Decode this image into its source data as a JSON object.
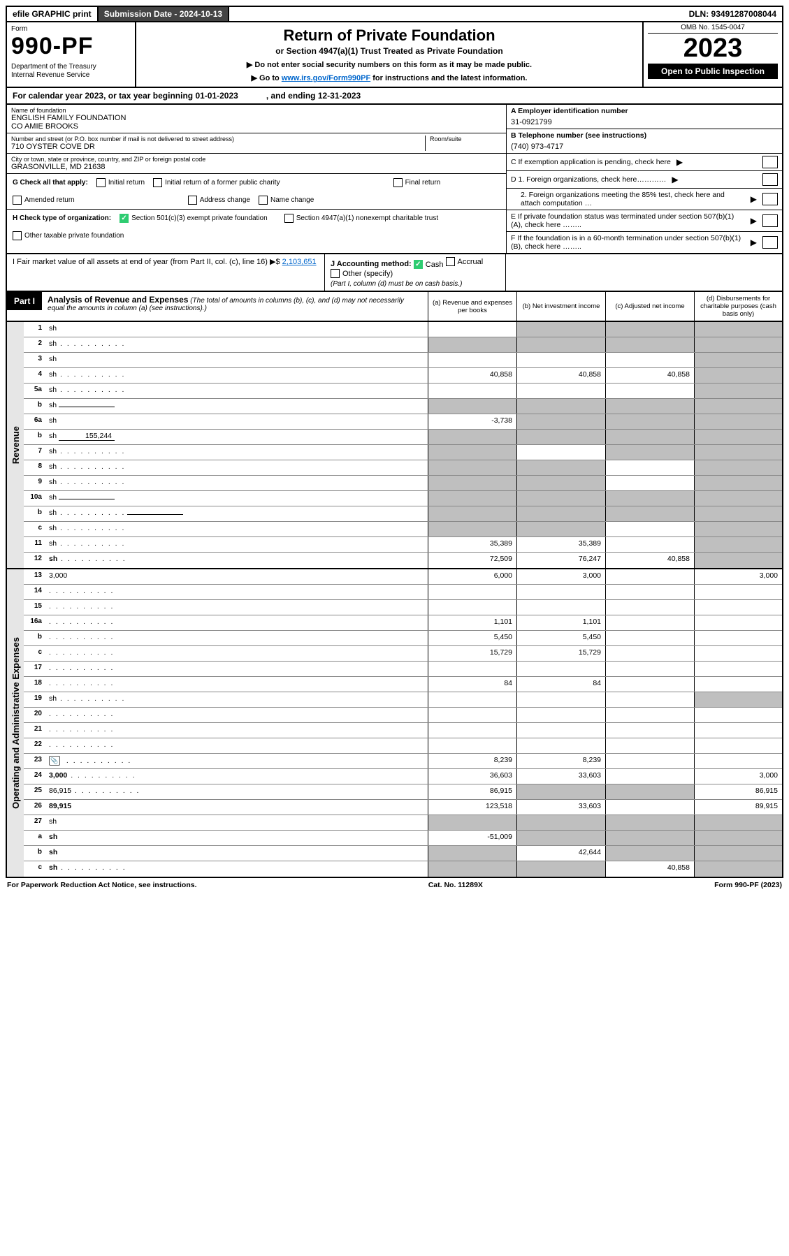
{
  "topbar": {
    "efile": "efile GRAPHIC print",
    "subdate_label": "Submission Date - 2024-10-13",
    "dln": "DLN: 93491287008044"
  },
  "header": {
    "form_label": "Form",
    "form_no": "990-PF",
    "dept": "Department of the Treasury\nInternal Revenue Service",
    "title": "Return of Private Foundation",
    "subtitle": "or Section 4947(a)(1) Trust Treated as Private Foundation",
    "note1": "▶ Do not enter social security numbers on this form as it may be made public.",
    "note2_pre": "▶ Go to ",
    "note2_link": "www.irs.gov/Form990PF",
    "note2_post": " for instructions and the latest information.",
    "omb": "OMB No. 1545-0047",
    "year": "2023",
    "open": "Open to Public Inspection"
  },
  "calrow": {
    "begin_label": "For calendar year 2023, or tax year beginning 01-01-2023",
    "end_label": ", and ending 12-31-2023"
  },
  "entity": {
    "name_label": "Name of foundation",
    "name": "ENGLISH FAMILY FOUNDATION\nCO AMIE BROOKS",
    "addr_label": "Number and street (or P.O. box number if mail is not delivered to street address)",
    "addr": "710 OYSTER COVE DR",
    "room_label": "Room/suite",
    "city_label": "City or town, state or province, country, and ZIP or foreign postal code",
    "city": "GRASONVILLE, MD  21638",
    "a_label": "A Employer identification number",
    "a_val": "31-0921799",
    "b_label": "B Telephone number (see instructions)",
    "b_val": "(740) 973-4717",
    "c_label": "C If exemption application is pending, check here",
    "d1_label": "D 1. Foreign organizations, check here…………",
    "d2_label": "2. Foreign organizations meeting the 85% test, check here and attach computation …",
    "e_label": "E  If private foundation status was terminated under section 507(b)(1)(A), check here ……..",
    "f_label": "F  If the foundation is in a 60-month termination under section 507(b)(1)(B), check here …….."
  },
  "g": {
    "label": "G Check all that apply:",
    "options": [
      "Initial return",
      "Initial return of a former public charity",
      "Final return",
      "Amended return",
      "Address change",
      "Name change"
    ]
  },
  "h": {
    "label": "H Check type of organization:",
    "opt1": "Section 501(c)(3) exempt private foundation",
    "opt2": "Section 4947(a)(1) nonexempt charitable trust",
    "opt3": "Other taxable private foundation"
  },
  "i": {
    "label": "I Fair market value of all assets at end of year (from Part II, col. (c), line 16) ▶$",
    "val": "2,103,651"
  },
  "j": {
    "label": "J Accounting method:",
    "cash": "Cash",
    "accrual": "Accrual",
    "other": "Other (specify)",
    "note": "(Part I, column (d) must be on cash basis.)"
  },
  "part1": {
    "tag": "Part I",
    "title": "Analysis of Revenue and Expenses",
    "title_note": " (The total of amounts in columns (b), (c), and (d) may not necessarily equal the amounts in column (a) (see instructions).)",
    "cols": {
      "a": "(a)   Revenue and expenses per books",
      "b": "(b)   Net investment income",
      "c": "(c)   Adjusted net income",
      "d": "(d)   Disbursements for charitable purposes (cash basis only)"
    }
  },
  "sections": {
    "revenue": "Revenue",
    "expenses": "Operating and Administrative Expenses"
  },
  "rows": [
    {
      "n": "1",
      "d": "sh",
      "a": "",
      "b": "sh",
      "c": "sh"
    },
    {
      "n": "2",
      "d": "sh",
      "dots": true,
      "a": "sh",
      "b": "sh",
      "c": "sh"
    },
    {
      "n": "3",
      "d": "sh",
      "a": "",
      "b": "",
      "c": ""
    },
    {
      "n": "4",
      "d": "sh",
      "dots": true,
      "a": "40,858",
      "b": "40,858",
      "c": "40,858"
    },
    {
      "n": "5a",
      "d": "sh",
      "dots": true,
      "a": "",
      "b": "",
      "c": ""
    },
    {
      "n": "b",
      "d": "sh",
      "inline": "",
      "a": "sh",
      "b": "sh",
      "c": "sh"
    },
    {
      "n": "6a",
      "d": "sh",
      "a": "-3,738",
      "b": "sh",
      "c": "sh"
    },
    {
      "n": "b",
      "d": "sh",
      "inline": "155,244",
      "a": "sh",
      "b": "sh",
      "c": "sh"
    },
    {
      "n": "7",
      "d": "sh",
      "dots": true,
      "a": "sh",
      "b": "",
      "c": "sh"
    },
    {
      "n": "8",
      "d": "sh",
      "dots": true,
      "a": "sh",
      "b": "sh",
      "c": ""
    },
    {
      "n": "9",
      "d": "sh",
      "dots": true,
      "a": "sh",
      "b": "sh",
      "c": ""
    },
    {
      "n": "10a",
      "d": "sh",
      "inline": "",
      "a": "sh",
      "b": "sh",
      "c": "sh"
    },
    {
      "n": "b",
      "d": "sh",
      "dots": true,
      "inline": "",
      "a": "sh",
      "b": "sh",
      "c": "sh"
    },
    {
      "n": "c",
      "d": "sh",
      "dots": true,
      "a": "sh",
      "b": "sh",
      "c": ""
    },
    {
      "n": "11",
      "d": "sh",
      "dots": true,
      "a": "35,389",
      "b": "35,389",
      "c": ""
    },
    {
      "n": "12",
      "d": "sh",
      "dots": true,
      "bold": true,
      "a": "72,509",
      "b": "76,247",
      "c": "40,858"
    }
  ],
  "exp_rows": [
    {
      "n": "13",
      "d": "3,000",
      "a": "6,000",
      "b": "3,000",
      "c": ""
    },
    {
      "n": "14",
      "d": "",
      "dots": true,
      "a": "",
      "b": "",
      "c": ""
    },
    {
      "n": "15",
      "d": "",
      "dots": true,
      "a": "",
      "b": "",
      "c": ""
    },
    {
      "n": "16a",
      "d": "",
      "dots": true,
      "a": "1,101",
      "b": "1,101",
      "c": ""
    },
    {
      "n": "b",
      "d": "",
      "dots": true,
      "a": "5,450",
      "b": "5,450",
      "c": ""
    },
    {
      "n": "c",
      "d": "",
      "dots": true,
      "a": "15,729",
      "b": "15,729",
      "c": ""
    },
    {
      "n": "17",
      "d": "",
      "dots": true,
      "a": "",
      "b": "",
      "c": ""
    },
    {
      "n": "18",
      "d": "",
      "dots": true,
      "a": "84",
      "b": "84",
      "c": ""
    },
    {
      "n": "19",
      "d": "sh",
      "dots": true,
      "a": "",
      "b": "",
      "c": ""
    },
    {
      "n": "20",
      "d": "",
      "dots": true,
      "a": "",
      "b": "",
      "c": ""
    },
    {
      "n": "21",
      "d": "",
      "dots": true,
      "a": "",
      "b": "",
      "c": ""
    },
    {
      "n": "22",
      "d": "",
      "dots": true,
      "a": "",
      "b": "",
      "c": ""
    },
    {
      "n": "23",
      "d": "",
      "dots": true,
      "icon": true,
      "a": "8,239",
      "b": "8,239",
      "c": ""
    },
    {
      "n": "24",
      "d": "3,000",
      "dots": true,
      "bold": true,
      "a": "36,603",
      "b": "33,603",
      "c": ""
    },
    {
      "n": "25",
      "d": "86,915",
      "dots": true,
      "a": "86,915",
      "b": "sh",
      "c": "sh"
    },
    {
      "n": "26",
      "d": "89,915",
      "bold": true,
      "a": "123,518",
      "b": "33,603",
      "c": ""
    },
    {
      "n": "27",
      "d": "sh",
      "a": "sh",
      "b": "sh",
      "c": "sh"
    },
    {
      "n": "a",
      "d": "sh",
      "bold": true,
      "a": "-51,009",
      "b": "sh",
      "c": "sh"
    },
    {
      "n": "b",
      "d": "sh",
      "bold": true,
      "a": "sh",
      "b": "42,644",
      "c": "sh"
    },
    {
      "n": "c",
      "d": "sh",
      "dots": true,
      "bold": true,
      "a": "sh",
      "b": "sh",
      "c": "40,858"
    }
  ],
  "footer": {
    "left": "For Paperwork Reduction Act Notice, see instructions.",
    "mid": "Cat. No. 11289X",
    "right": "Form 990-PF (2023)"
  },
  "colors": {
    "link": "#0066cc",
    "shade": "#bfbfbf",
    "check": "#2ecc71"
  }
}
